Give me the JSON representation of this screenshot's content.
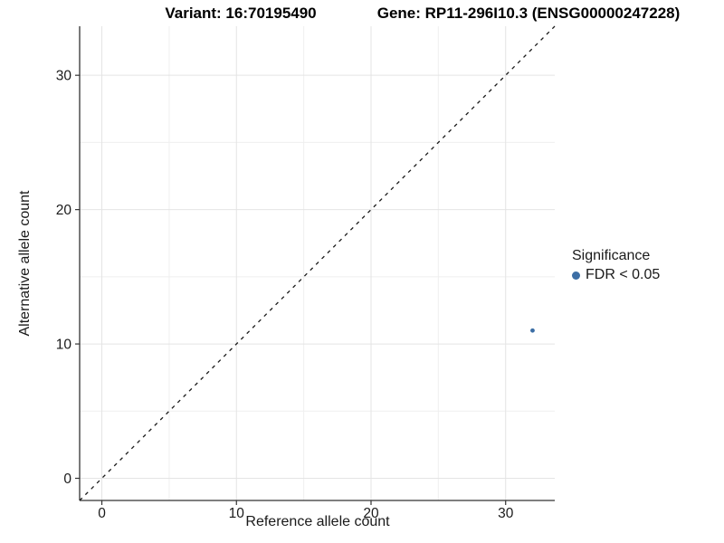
{
  "chart_data": {
    "type": "scatter",
    "title_variant": "Variant: 16:70195490",
    "title_gene": "Gene: RP11-296I10.3 (ENSG00000247228)",
    "xlabel": "Reference allele count",
    "ylabel": "Alternative allele count",
    "xlim": [
      -1.65,
      33.65
    ],
    "ylim": [
      -1.65,
      33.65
    ],
    "xticks": [
      0,
      10,
      20,
      30
    ],
    "yticks": [
      0,
      10,
      20,
      30
    ],
    "minor_xticks": [
      5,
      15,
      25
    ],
    "minor_yticks": [
      5,
      15,
      25
    ],
    "grid": true,
    "identity_line": {
      "slope": 1,
      "intercept": 0,
      "style": "dashed"
    },
    "series": [
      {
        "name": "FDR < 0.05",
        "color": "#3C6EA5",
        "points": [
          {
            "x": 32,
            "y": 11
          }
        ]
      }
    ],
    "legend": {
      "title": "Significance",
      "position": "right",
      "items": [
        {
          "label": "FDR < 0.05",
          "color": "#3C6EA5",
          "marker": "circle"
        }
      ]
    },
    "colors": {
      "point": "#3C6EA5",
      "axis_line": "#333333",
      "tick_label": "#1a1a1a",
      "grid_major": "#E4E4E4",
      "grid_minor": "#EFEFEF",
      "identity_line": "#1a1a1a",
      "background": "#FFFFFF"
    }
  }
}
